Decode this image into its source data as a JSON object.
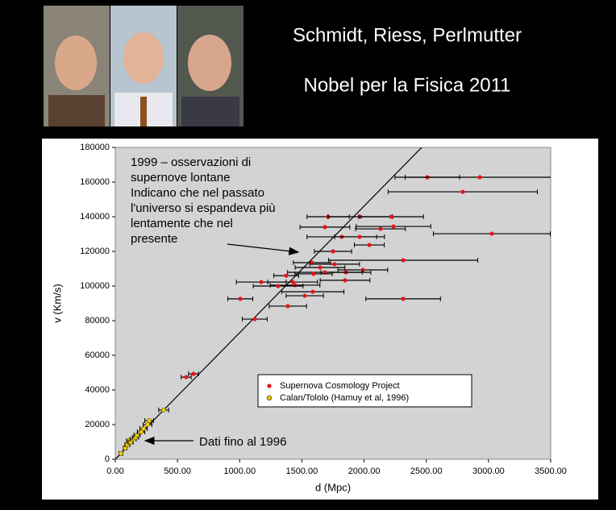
{
  "slide": {
    "titles": [
      "Schmidt, Riess, Perlmutter",
      "Nobel per la Fisica 2011"
    ]
  },
  "chart_data": {
    "type": "scatter",
    "xlabel": "d (Mpc)",
    "ylabel": "v (Km/s)",
    "xlim": [
      0,
      3500
    ],
    "ylim": [
      0,
      180000
    ],
    "xticks": [
      {
        "value": 0,
        "label": "0.00"
      },
      {
        "value": 500,
        "label": "500.00"
      },
      {
        "value": 1000,
        "label": "1000.00"
      },
      {
        "value": 1500,
        "label": "1500.00"
      },
      {
        "value": 2000,
        "label": "2000.00"
      },
      {
        "value": 2500,
        "label": "2500.00"
      },
      {
        "value": 3000,
        "label": "3000.00"
      },
      {
        "value": 3500,
        "label": "3500.00"
      }
    ],
    "yticks": [
      0,
      20000,
      40000,
      60000,
      80000,
      100000,
      120000,
      140000,
      160000,
      180000
    ],
    "series": [
      {
        "name": "Supernova Cosmology Project",
        "color": "#e8141c",
        "x": [
          2508,
          2930,
          2793,
          1711,
          1970,
          2217,
          1685,
          2236,
          2132,
          3027,
          1821,
          1964,
          2042,
          1750,
          2314,
          1581,
          1646,
          1763,
          1990,
          1854,
          1685,
          1594,
          1374,
          1847,
          1173,
          1426,
          1445,
          1309,
          1588,
          1523,
          1005,
          2314,
          1387,
          1121,
          629,
          570
        ],
        "values": [
          162800,
          162800,
          154400,
          140000,
          140000,
          140000,
          134000,
          134400,
          133000,
          130200,
          128400,
          128400,
          123700,
          120000,
          114900,
          113500,
          110700,
          112600,
          109300,
          107900,
          107900,
          107000,
          106000,
          103300,
          102300,
          102300,
          100500,
          100000,
          96700,
          94400,
          92600,
          92600,
          88400,
          80900,
          49300,
          47400
        ],
        "x_err": [
          260,
          600,
          600,
          170,
          260,
          260,
          200,
          300,
          200,
          470,
          280,
          200,
          120,
          150,
          600,
          150,
          200,
          200,
          200,
          200,
          300,
          150,
          100,
          200,
          200,
          200,
          200,
          200,
          250,
          150,
          100,
          300,
          150,
          100,
          40,
          40
        ]
      },
      {
        "name": "Calan/Tololo (Hamuy et al, 1996)",
        "color": "#f0d000",
        "x": [
          45,
          78,
          97,
          110,
          123,
          143,
          162,
          175,
          207,
          227,
          259,
          272,
          389
        ],
        "values": [
          3300,
          6500,
          8400,
          10700,
          9800,
          11600,
          12600,
          14000,
          15800,
          17700,
          20000,
          22300,
          28400
        ],
        "x_err": [
          15,
          15,
          20,
          20,
          20,
          25,
          25,
          25,
          30,
          30,
          35,
          35,
          40
        ]
      }
    ],
    "line": {
      "x": [
        0,
        2463
      ],
      "y": [
        0,
        180000
      ]
    },
    "annotations": [
      {
        "lines": [
          "1999 – osservazioni di",
          "supernove lontane",
          "Indicano che nel passato",
          "l'universo si espandeva più",
          "lentamente che nel",
          "presente"
        ]
      },
      {
        "lines": [
          "Dati fino al 1996"
        ]
      }
    ]
  }
}
